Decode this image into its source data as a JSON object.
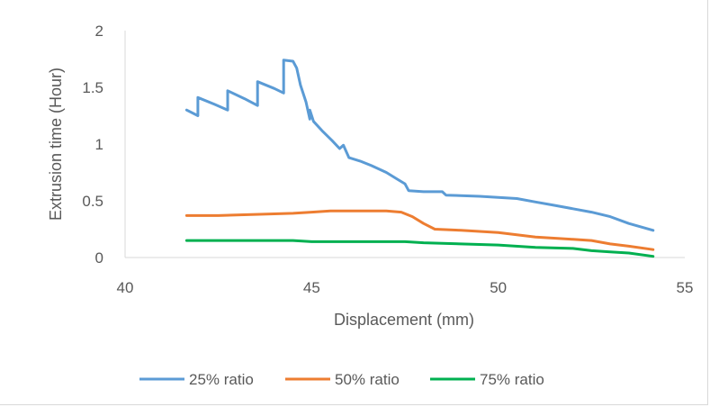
{
  "chart_data": {
    "type": "line",
    "title": "",
    "xlabel": "Displacement (mm)",
    "ylabel": "Extrusion time (Hour)",
    "xlim": [
      40,
      55
    ],
    "ylim": [
      0,
      2
    ],
    "xticks": [
      "40",
      "45",
      "50",
      "55"
    ],
    "yticks": [
      "0",
      "0.5",
      "1",
      "1.5",
      "2"
    ],
    "grid": false,
    "legend_position": "bottom",
    "series": [
      {
        "name": "25% ratio",
        "color": "#5b9bd5",
        "points": [
          [
            41.65,
            1.3
          ],
          [
            41.95,
            1.25
          ],
          [
            41.95,
            1.41
          ],
          [
            42.4,
            1.35
          ],
          [
            42.75,
            1.3
          ],
          [
            42.75,
            1.47
          ],
          [
            43.2,
            1.4
          ],
          [
            43.55,
            1.34
          ],
          [
            43.55,
            1.55
          ],
          [
            44.0,
            1.49
          ],
          [
            44.25,
            1.45
          ],
          [
            44.25,
            1.74
          ],
          [
            44.5,
            1.73
          ],
          [
            44.6,
            1.67
          ],
          [
            44.7,
            1.52
          ],
          [
            44.85,
            1.37
          ],
          [
            44.95,
            1.22
          ],
          [
            44.95,
            1.3
          ],
          [
            45.05,
            1.2
          ],
          [
            45.3,
            1.11
          ],
          [
            45.55,
            1.03
          ],
          [
            45.75,
            0.96
          ],
          [
            45.85,
            0.99
          ],
          [
            46.0,
            0.88
          ],
          [
            46.3,
            0.85
          ],
          [
            46.6,
            0.81
          ],
          [
            47.0,
            0.75
          ],
          [
            47.3,
            0.69
          ],
          [
            47.5,
            0.65
          ],
          [
            47.6,
            0.59
          ],
          [
            48.0,
            0.58
          ],
          [
            48.5,
            0.58
          ],
          [
            48.6,
            0.55
          ],
          [
            49.5,
            0.54
          ],
          [
            50.0,
            0.53
          ],
          [
            50.5,
            0.52
          ],
          [
            51.0,
            0.49
          ],
          [
            51.5,
            0.46
          ],
          [
            52.0,
            0.43
          ],
          [
            52.5,
            0.4
          ],
          [
            53.0,
            0.36
          ],
          [
            53.5,
            0.3
          ],
          [
            54.15,
            0.24
          ]
        ]
      },
      {
        "name": "50% ratio",
        "color": "#ed7d31",
        "points": [
          [
            41.65,
            0.37
          ],
          [
            42.5,
            0.37
          ],
          [
            43.5,
            0.38
          ],
          [
            44.5,
            0.39
          ],
          [
            45.0,
            0.4
          ],
          [
            45.5,
            0.41
          ],
          [
            46.0,
            0.41
          ],
          [
            46.5,
            0.41
          ],
          [
            47.0,
            0.41
          ],
          [
            47.4,
            0.4
          ],
          [
            47.7,
            0.36
          ],
          [
            48.0,
            0.3
          ],
          [
            48.3,
            0.25
          ],
          [
            49.0,
            0.24
          ],
          [
            49.5,
            0.23
          ],
          [
            50.0,
            0.22
          ],
          [
            50.5,
            0.2
          ],
          [
            51.0,
            0.18
          ],
          [
            52.0,
            0.16
          ],
          [
            52.5,
            0.15
          ],
          [
            53.0,
            0.12
          ],
          [
            53.5,
            0.1
          ],
          [
            54.15,
            0.07
          ]
        ]
      },
      {
        "name": "75% ratio",
        "color": "#00b050",
        "points": [
          [
            41.65,
            0.15
          ],
          [
            42.5,
            0.15
          ],
          [
            43.5,
            0.15
          ],
          [
            44.5,
            0.15
          ],
          [
            45.0,
            0.14
          ],
          [
            46.0,
            0.14
          ],
          [
            47.0,
            0.14
          ],
          [
            47.5,
            0.14
          ],
          [
            48.0,
            0.13
          ],
          [
            49.0,
            0.12
          ],
          [
            50.0,
            0.11
          ],
          [
            51.0,
            0.09
          ],
          [
            52.0,
            0.08
          ],
          [
            52.5,
            0.06
          ],
          [
            53.0,
            0.05
          ],
          [
            53.5,
            0.04
          ],
          [
            54.15,
            0.01
          ]
        ]
      }
    ]
  }
}
